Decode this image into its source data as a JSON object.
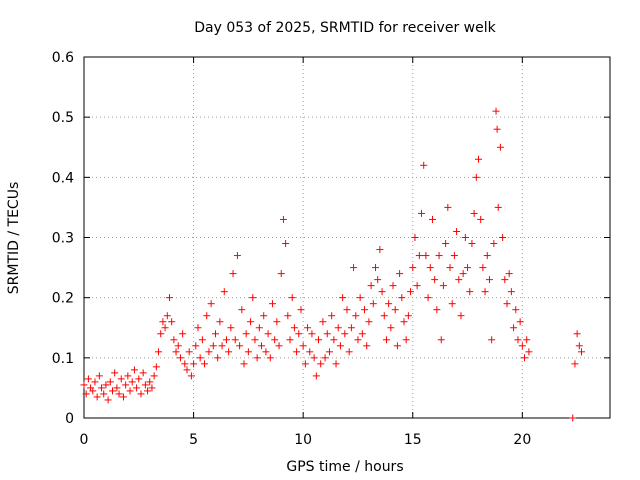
{
  "chart_data": {
    "type": "scatter",
    "title": "Day 053 of 2025, SRMTID for receiver welk",
    "xlabel": "GPS time / hours",
    "ylabel": "SRMTID / TECUs",
    "xlim": [
      0,
      24
    ],
    "ylim": [
      0,
      0.6
    ],
    "xticks": [
      0,
      5,
      10,
      15,
      20
    ],
    "xtick_labels": [
      "0",
      "5",
      "10",
      "15",
      "20"
    ],
    "yticks": [
      0,
      0.1,
      0.2,
      0.3,
      0.4,
      0.5,
      0.6
    ],
    "ytick_labels": [
      "0",
      "0.1",
      "0.2",
      "0.3",
      "0.4",
      "0.5",
      "0.6"
    ],
    "grid": true,
    "marker": "+",
    "color": "#ff0000",
    "series": [
      {
        "name": "SRMTID",
        "points": [
          [
            0.0,
            0.055
          ],
          [
            0.1,
            0.04
          ],
          [
            0.2,
            0.065
          ],
          [
            0.3,
            0.05
          ],
          [
            0.4,
            0.045
          ],
          [
            0.5,
            0.06
          ],
          [
            0.6,
            0.035
          ],
          [
            0.7,
            0.07
          ],
          [
            0.8,
            0.05
          ],
          [
            0.9,
            0.04
          ],
          [
            1.0,
            0.055
          ],
          [
            1.1,
            0.03
          ],
          [
            1.2,
            0.06
          ],
          [
            1.3,
            0.045
          ],
          [
            1.4,
            0.075
          ],
          [
            1.5,
            0.05
          ],
          [
            1.6,
            0.04
          ],
          [
            1.7,
            0.065
          ],
          [
            1.8,
            0.035
          ],
          [
            1.9,
            0.055
          ],
          [
            2.0,
            0.07
          ],
          [
            2.1,
            0.045
          ],
          [
            2.2,
            0.06
          ],
          [
            2.3,
            0.08
          ],
          [
            2.4,
            0.05
          ],
          [
            2.5,
            0.065
          ],
          [
            2.6,
            0.04
          ],
          [
            2.7,
            0.075
          ],
          [
            2.8,
            0.055
          ],
          [
            2.9,
            0.045
          ],
          [
            3.0,
            0.06
          ],
          [
            3.1,
            0.05
          ],
          [
            3.2,
            0.07
          ],
          [
            3.3,
            0.085
          ],
          [
            3.4,
            0.11
          ],
          [
            3.5,
            0.14
          ],
          [
            3.6,
            0.16
          ],
          [
            3.7,
            0.15
          ],
          [
            3.8,
            0.17
          ],
          [
            3.9,
            0.2
          ],
          [
            4.0,
            0.16
          ],
          [
            4.1,
            0.13
          ],
          [
            4.2,
            0.11
          ],
          [
            4.3,
            0.12
          ],
          [
            4.4,
            0.1
          ],
          [
            4.5,
            0.14
          ],
          [
            4.6,
            0.09
          ],
          [
            4.7,
            0.08
          ],
          [
            4.8,
            0.11
          ],
          [
            4.9,
            0.07
          ],
          [
            5.0,
            0.09
          ],
          [
            5.1,
            0.12
          ],
          [
            5.2,
            0.15
          ],
          [
            5.3,
            0.1
          ],
          [
            5.4,
            0.13
          ],
          [
            5.5,
            0.09
          ],
          [
            5.6,
            0.17
          ],
          [
            5.7,
            0.11
          ],
          [
            5.8,
            0.19
          ],
          [
            5.9,
            0.12
          ],
          [
            6.0,
            0.14
          ],
          [
            6.1,
            0.1
          ],
          [
            6.2,
            0.16
          ],
          [
            6.3,
            0.12
          ],
          [
            6.4,
            0.21
          ],
          [
            6.5,
            0.13
          ],
          [
            6.6,
            0.11
          ],
          [
            6.7,
            0.15
          ],
          [
            6.8,
            0.24
          ],
          [
            6.9,
            0.13
          ],
          [
            7.0,
            0.27
          ],
          [
            7.1,
            0.12
          ],
          [
            7.2,
            0.18
          ],
          [
            7.3,
            0.09
          ],
          [
            7.4,
            0.14
          ],
          [
            7.5,
            0.11
          ],
          [
            7.6,
            0.16
          ],
          [
            7.7,
            0.2
          ],
          [
            7.8,
            0.13
          ],
          [
            7.9,
            0.1
          ],
          [
            8.0,
            0.15
          ],
          [
            8.1,
            0.12
          ],
          [
            8.2,
            0.17
          ],
          [
            8.3,
            0.11
          ],
          [
            8.4,
            0.14
          ],
          [
            8.5,
            0.1
          ],
          [
            8.6,
            0.19
          ],
          [
            8.7,
            0.13
          ],
          [
            8.8,
            0.16
          ],
          [
            8.9,
            0.12
          ],
          [
            9.0,
            0.24
          ],
          [
            9.1,
            0.33
          ],
          [
            9.2,
            0.29
          ],
          [
            9.3,
            0.17
          ],
          [
            9.4,
            0.13
          ],
          [
            9.5,
            0.2
          ],
          [
            9.6,
            0.15
          ],
          [
            9.7,
            0.11
          ],
          [
            9.8,
            0.14
          ],
          [
            9.9,
            0.18
          ],
          [
            10.0,
            0.12
          ],
          [
            10.1,
            0.09
          ],
          [
            10.2,
            0.15
          ],
          [
            10.3,
            0.11
          ],
          [
            10.4,
            0.14
          ],
          [
            10.5,
            0.1
          ],
          [
            10.6,
            0.07
          ],
          [
            10.7,
            0.13
          ],
          [
            10.8,
            0.09
          ],
          [
            10.9,
            0.16
          ],
          [
            11.0,
            0.1
          ],
          [
            11.1,
            0.14
          ],
          [
            11.2,
            0.11
          ],
          [
            11.3,
            0.17
          ],
          [
            11.4,
            0.13
          ],
          [
            11.5,
            0.09
          ],
          [
            11.6,
            0.15
          ],
          [
            11.7,
            0.12
          ],
          [
            11.8,
            0.2
          ],
          [
            11.9,
            0.14
          ],
          [
            12.0,
            0.18
          ],
          [
            12.1,
            0.11
          ],
          [
            12.2,
            0.15
          ],
          [
            12.3,
            0.25
          ],
          [
            12.4,
            0.17
          ],
          [
            12.5,
            0.13
          ],
          [
            12.6,
            0.2
          ],
          [
            12.7,
            0.14
          ],
          [
            12.8,
            0.18
          ],
          [
            12.9,
            0.12
          ],
          [
            13.0,
            0.16
          ],
          [
            13.1,
            0.22
          ],
          [
            13.2,
            0.19
          ],
          [
            13.3,
            0.25
          ],
          [
            13.4,
            0.23
          ],
          [
            13.5,
            0.28
          ],
          [
            13.6,
            0.21
          ],
          [
            13.7,
            0.17
          ],
          [
            13.8,
            0.13
          ],
          [
            13.9,
            0.19
          ],
          [
            14.0,
            0.15
          ],
          [
            14.1,
            0.22
          ],
          [
            14.2,
            0.18
          ],
          [
            14.3,
            0.12
          ],
          [
            14.4,
            0.24
          ],
          [
            14.5,
            0.2
          ],
          [
            14.6,
            0.16
          ],
          [
            14.7,
            0.13
          ],
          [
            14.8,
            0.17
          ],
          [
            14.9,
            0.21
          ],
          [
            15.0,
            0.25
          ],
          [
            15.1,
            0.3
          ],
          [
            15.2,
            0.22
          ],
          [
            15.3,
            0.27
          ],
          [
            15.4,
            0.34
          ],
          [
            15.5,
            0.42
          ],
          [
            15.6,
            0.27
          ],
          [
            15.7,
            0.2
          ],
          [
            15.8,
            0.25
          ],
          [
            15.9,
            0.33
          ],
          [
            16.0,
            0.23
          ],
          [
            16.1,
            0.18
          ],
          [
            16.2,
            0.27
          ],
          [
            16.3,
            0.13
          ],
          [
            16.4,
            0.22
          ],
          [
            16.5,
            0.29
          ],
          [
            16.6,
            0.35
          ],
          [
            16.7,
            0.25
          ],
          [
            16.8,
            0.19
          ],
          [
            16.9,
            0.27
          ],
          [
            17.0,
            0.31
          ],
          [
            17.1,
            0.23
          ],
          [
            17.2,
            0.17
          ],
          [
            17.3,
            0.24
          ],
          [
            17.4,
            0.3
          ],
          [
            17.5,
            0.25
          ],
          [
            17.6,
            0.21
          ],
          [
            17.7,
            0.29
          ],
          [
            17.8,
            0.34
          ],
          [
            17.9,
            0.4
          ],
          [
            18.0,
            0.43
          ],
          [
            18.1,
            0.33
          ],
          [
            18.2,
            0.25
          ],
          [
            18.3,
            0.21
          ],
          [
            18.4,
            0.27
          ],
          [
            18.5,
            0.23
          ],
          [
            18.6,
            0.13
          ],
          [
            18.7,
            0.29
          ],
          [
            18.8,
            0.51
          ],
          [
            18.85,
            0.48
          ],
          [
            18.9,
            0.35
          ],
          [
            19.0,
            0.45
          ],
          [
            19.1,
            0.3
          ],
          [
            19.2,
            0.23
          ],
          [
            19.3,
            0.19
          ],
          [
            19.4,
            0.24
          ],
          [
            19.5,
            0.21
          ],
          [
            19.6,
            0.15
          ],
          [
            19.7,
            0.18
          ],
          [
            19.8,
            0.13
          ],
          [
            19.9,
            0.16
          ],
          [
            20.0,
            0.12
          ],
          [
            20.1,
            0.1
          ],
          [
            20.2,
            0.13
          ],
          [
            20.3,
            0.11
          ],
          [
            22.3,
            0.0
          ],
          [
            22.4,
            0.09
          ],
          [
            22.5,
            0.14
          ],
          [
            22.6,
            0.12
          ],
          [
            22.7,
            0.11
          ]
        ]
      }
    ]
  }
}
